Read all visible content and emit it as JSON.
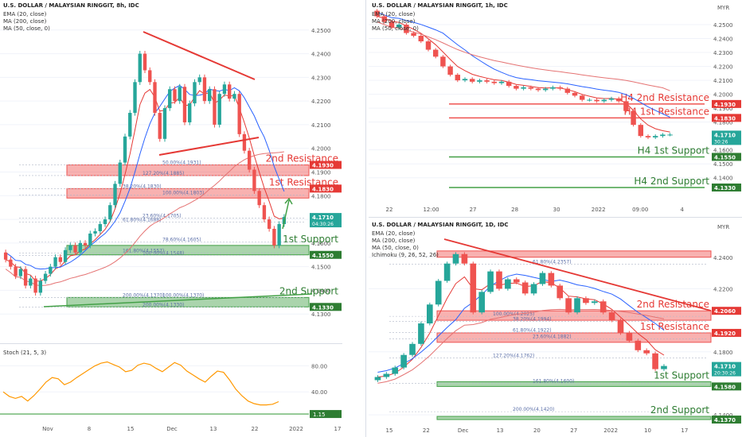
{
  "colors": {
    "up": "#26a69a",
    "down": "#ef5350",
    "ema": "#e53935",
    "ma200": "#e57373",
    "ma50": "#2962ff",
    "resistance": "#ef5350",
    "support": "#43a047",
    "resistance_text": "#e53935",
    "support_text": "#2e7d32",
    "trend": "#e53935",
    "stoch": "#ff9800",
    "axis_text": "#555555",
    "grid": "#f0f3fa"
  },
  "panels": [
    {
      "id": "eight-hour",
      "timeframe": "8h",
      "chart_data": {
        "type": "candlestick",
        "title": "U.S. DOLLAR / MALAYSIAN RINGGIT, 8h, IDC",
        "indicators": [
          "EMA (20, close)",
          "MA (200, close)",
          "MA (50, close, 0)"
        ],
        "currency": "",
        "ylim": [
          4.12,
          4.26
        ],
        "y_ticks": [
          "4.2500",
          "4.2400",
          "4.2300",
          "4.2200",
          "4.2100",
          "4.2000",
          "4.1900",
          "4.1800",
          "4.1700",
          "4.1600",
          "4.1500",
          "4.1400",
          "4.1300"
        ],
        "x_ticks": [
          "Nov",
          "8",
          "15",
          "Dec",
          "13",
          "22",
          "2022",
          "17"
        ],
        "price_tags": [
          {
            "text": "4.1930",
            "price": 4.193,
            "kind": "resistance"
          },
          {
            "text": "4.1830",
            "price": 4.183,
            "kind": "resistance"
          },
          {
            "text": "4.1710",
            "sub": "04:30:26",
            "price": 4.171,
            "kind": "last"
          },
          {
            "text": "4.1550",
            "price": 4.155,
            "kind": "support"
          },
          {
            "text": "4.1330",
            "price": 4.133,
            "kind": "support"
          }
        ],
        "zones": [
          {
            "label": "2nd Resistance",
            "top": 4.193,
            "bottom": 4.1885,
            "kind": "resistance"
          },
          {
            "label": "1st Resistance",
            "top": 4.183,
            "bottom": 4.179,
            "kind": "resistance"
          },
          {
            "label": "1st Support",
            "top": 4.159,
            "bottom": 4.155,
            "kind": "support"
          },
          {
            "label": "2nd Support",
            "top": 4.137,
            "bottom": 4.133,
            "kind": "support"
          }
        ],
        "fib_levels": [
          {
            "label": "50.00%(4.1931)",
            "price": 4.1931
          },
          {
            "label": "127.20%(4.1885)",
            "price": 4.1885
          },
          {
            "label": "38.20%(4.1830)",
            "price": 4.183
          },
          {
            "label": "100.00%(4.1803)",
            "price": 4.1803
          },
          {
            "label": "23.60%(4.1705)",
            "price": 4.1705
          },
          {
            "label": "61.80%(4.1688)",
            "price": 4.1688
          },
          {
            "label": "78.60%(4.1605)",
            "price": 4.1605
          },
          {
            "label": "100.00%(4.1548)",
            "price": 4.1548
          },
          {
            "label": "161.80%(4.1557)",
            "price": 4.1557
          },
          {
            "label": "100.00%(4.1370)",
            "price": 4.137
          },
          {
            "label": "200.00%(4.1330)",
            "price": 4.133
          },
          {
            "label": "200.00%(4.1370)",
            "price": 4.137
          }
        ],
        "candles": [
          [
            4.156,
            4.153
          ],
          [
            4.153,
            4.15
          ],
          [
            4.15,
            4.146
          ],
          [
            4.146,
            4.149
          ],
          [
            4.149,
            4.142
          ],
          [
            4.142,
            4.145
          ],
          [
            4.145,
            4.139
          ],
          [
            4.139,
            4.144
          ],
          [
            4.144,
            4.147
          ],
          [
            4.147,
            4.15
          ],
          [
            4.15,
            4.154
          ],
          [
            4.154,
            4.152
          ],
          [
            4.152,
            4.157
          ],
          [
            4.157,
            4.159
          ],
          [
            4.159,
            4.156
          ],
          [
            4.156,
            4.16
          ],
          [
            4.16,
            4.159
          ],
          [
            4.159,
            4.164
          ],
          [
            4.164,
            4.165
          ],
          [
            4.165,
            4.168
          ],
          [
            4.168,
            4.17
          ],
          [
            4.17,
            4.176
          ],
          [
            4.176,
            4.185
          ],
          [
            4.185,
            4.194
          ],
          [
            4.194,
            4.205
          ],
          [
            4.205,
            4.215
          ],
          [
            4.215,
            4.228
          ],
          [
            4.228,
            4.24
          ],
          [
            4.24,
            4.233
          ],
          [
            4.233,
            4.228
          ],
          [
            4.228,
            4.215
          ],
          [
            4.215,
            4.204
          ],
          [
            4.204,
            4.217
          ],
          [
            4.217,
            4.225
          ],
          [
            4.225,
            4.22
          ],
          [
            4.22,
            4.226
          ],
          [
            4.226,
            4.211
          ],
          [
            4.211,
            4.219
          ],
          [
            4.219,
            4.228
          ],
          [
            4.228,
            4.23
          ],
          [
            4.23,
            4.22
          ],
          [
            4.22,
            4.225
          ],
          [
            4.225,
            4.21
          ],
          [
            4.21,
            4.223
          ],
          [
            4.223,
            4.227
          ],
          [
            4.227,
            4.221
          ],
          [
            4.221,
            4.223
          ],
          [
            4.223,
            4.206
          ],
          [
            4.206,
            4.199
          ],
          [
            4.199,
            4.191
          ],
          [
            4.191,
            4.182
          ],
          [
            4.182,
            4.176
          ],
          [
            4.176,
            4.17
          ],
          [
            4.17,
            4.166
          ],
          [
            4.166,
            4.159
          ],
          [
            4.159,
            4.168
          ],
          [
            4.168,
            4.171
          ]
        ],
        "callouts": []
      },
      "stoch": {
        "label": "Stoch (21, 5, 3)",
        "y_ticks": [
          "80.00",
          "40.00"
        ],
        "level_tag": "1.15",
        "values": [
          40,
          33,
          30,
          33,
          26,
          34,
          44,
          55,
          62,
          60,
          51,
          55,
          62,
          68,
          74,
          80,
          84,
          86,
          82,
          78,
          71,
          73,
          81,
          84,
          82,
          76,
          71,
          78,
          85,
          81,
          72,
          66,
          60,
          55,
          64,
          72,
          70,
          58,
          44,
          34,
          26,
          22,
          20,
          20,
          21,
          25
        ]
      }
    },
    {
      "id": "one-hour",
      "timeframe": "1h",
      "chart_data": {
        "type": "candlestick",
        "title": "U.S. DOLLAR / MALAYSIAN RINGGIT, 1h, IDC",
        "indicators": [
          "EMA (20, close)",
          "MA (200, close)",
          "MA (50, close, 0)"
        ],
        "currency": "MYR",
        "ylim": [
          4.125,
          4.262
        ],
        "y_ticks": [
          "4.2500",
          "4.2400",
          "4.2300",
          "4.2200",
          "4.2100",
          "4.2000",
          "4.1900",
          "4.1800",
          "4.1600",
          "4.1500",
          "4.1400"
        ],
        "x_ticks": [
          "22",
          "12:00",
          "27",
          "28",
          "30",
          "2022",
          "09:00",
          "4"
        ],
        "price_tags": [
          {
            "text": "4.1930",
            "price": 4.193,
            "kind": "resistance"
          },
          {
            "text": "4.1830",
            "price": 4.183,
            "kind": "resistance"
          },
          {
            "text": "4.1710",
            "sub": "30:26",
            "price": 4.171,
            "kind": "last"
          },
          {
            "text": "4.1550",
            "price": 4.155,
            "kind": "support"
          },
          {
            "text": "4.1330",
            "price": 4.133,
            "kind": "support"
          }
        ],
        "zones": [
          {
            "label": "H4 2nd Resistance",
            "top": 4.193,
            "bottom": 4.193,
            "kind": "resistance"
          },
          {
            "label": "H4 1st Resistance",
            "top": 4.183,
            "bottom": 4.183,
            "kind": "resistance"
          },
          {
            "label": "H4 1st Support",
            "top": 4.155,
            "bottom": 4.155,
            "kind": "support"
          },
          {
            "label": "H4 2nd Support",
            "top": 4.133,
            "bottom": 4.133,
            "kind": "support"
          }
        ],
        "fib_levels": [],
        "candles": [
          [
            4.26,
            4.256
          ],
          [
            4.256,
            4.252
          ],
          [
            4.252,
            4.248
          ],
          [
            4.248,
            4.25
          ],
          [
            4.25,
            4.244
          ],
          [
            4.244,
            4.242
          ],
          [
            4.242,
            4.238
          ],
          [
            4.238,
            4.232
          ],
          [
            4.232,
            4.227
          ],
          [
            4.227,
            4.22
          ],
          [
            4.22,
            4.214
          ],
          [
            4.214,
            4.21
          ],
          [
            4.21,
            4.211
          ],
          [
            4.211,
            4.209
          ],
          [
            4.209,
            4.21
          ],
          [
            4.21,
            4.209
          ],
          [
            4.209,
            4.208
          ],
          [
            4.208,
            4.209
          ],
          [
            4.209,
            4.206
          ],
          [
            4.206,
            4.204
          ],
          [
            4.204,
            4.205
          ],
          [
            4.205,
            4.204
          ],
          [
            4.204,
            4.203
          ],
          [
            4.203,
            4.204
          ],
          [
            4.204,
            4.205
          ],
          [
            4.205,
            4.204
          ],
          [
            4.204,
            4.201
          ],
          [
            4.201,
            4.199
          ],
          [
            4.199,
            4.196
          ],
          [
            4.196,
            4.196
          ],
          [
            4.196,
            4.195
          ],
          [
            4.195,
            4.196
          ],
          [
            4.196,
            4.197
          ],
          [
            4.197,
            4.195
          ],
          [
            4.195,
            4.188
          ],
          [
            4.188,
            4.178
          ],
          [
            4.178,
            4.17
          ],
          [
            4.17,
            4.169
          ],
          [
            4.169,
            4.17
          ],
          [
            4.17,
            4.171
          ],
          [
            4.171,
            4.171
          ]
        ],
        "callouts": []
      }
    },
    {
      "id": "daily",
      "timeframe": "1D",
      "chart_data": {
        "type": "candlestick",
        "title": "U.S. DOLLAR / MALAYSIAN RINGGIT, 1D, IDC",
        "indicators": [
          "EMA (20, close)",
          "MA (200, close)",
          "MA (50, close, 0)",
          "Ichimoku (9, 26, 52, 26)"
        ],
        "currency": "MYR",
        "ylim": [
          4.135,
          4.255
        ],
        "y_ticks": [
          "4.2400",
          "4.2200",
          "4.1800",
          "4.1400"
        ],
        "x_ticks": [
          "15",
          "22",
          "Dec",
          "13",
          "20",
          "27",
          "2022",
          "10",
          "17"
        ],
        "price_tags": [
          {
            "text": "4.2060",
            "price": 4.206,
            "kind": "resistance"
          },
          {
            "text": "4.1920",
            "price": 4.192,
            "kind": "resistance"
          },
          {
            "text": "4.1710",
            "sub": "20:30:26",
            "price": 4.171,
            "kind": "last"
          },
          {
            "text": "4.1580",
            "price": 4.158,
            "kind": "support"
          },
          {
            "text": "4.1370",
            "price": 4.137,
            "kind": "support"
          }
        ],
        "zones": [
          {
            "label": "",
            "top": 4.244,
            "bottom": 4.24,
            "kind": "resistance"
          },
          {
            "label": "2nd Resistance",
            "top": 4.206,
            "bottom": 4.2,
            "kind": "resistance"
          },
          {
            "label": "1st Resistance",
            "top": 4.192,
            "bottom": 4.186,
            "kind": "resistance"
          },
          {
            "label": "1st Support",
            "top": 4.161,
            "bottom": 4.158,
            "kind": "support"
          },
          {
            "label": "2nd Support",
            "top": 4.139,
            "bottom": 4.137,
            "kind": "support"
          }
        ],
        "fib_levels": [
          {
            "label": "61.80%(4.2357)",
            "price": 4.2357
          },
          {
            "label": "38.20%(4.1994)",
            "price": 4.1994
          },
          {
            "label": "100.00%(4.2025)",
            "price": 4.2025
          },
          {
            "label": "23.60%(4.1882)",
            "price": 4.1882
          },
          {
            "label": "61.80%(4.1922)",
            "price": 4.1922
          },
          {
            "label": "127.20%(4.1762)",
            "price": 4.1762
          },
          {
            "label": "161.80%(4.1600)",
            "price": 4.16
          },
          {
            "label": "200.00%(4.1420)",
            "price": 4.142
          }
        ],
        "candles": [
          [
            4.162,
            4.164
          ],
          [
            4.164,
            4.166
          ],
          [
            4.166,
            4.17
          ],
          [
            4.17,
            4.178
          ],
          [
            4.178,
            4.185
          ],
          [
            4.185,
            4.198
          ],
          [
            4.198,
            4.21
          ],
          [
            4.21,
            4.225
          ],
          [
            4.225,
            4.236
          ],
          [
            4.236,
            4.242
          ],
          [
            4.242,
            4.236
          ],
          [
            4.236,
            4.205
          ],
          [
            4.205,
            4.218
          ],
          [
            4.218,
            4.231
          ],
          [
            4.231,
            4.22
          ],
          [
            4.22,
            4.226
          ],
          [
            4.226,
            4.224
          ],
          [
            4.224,
            4.217
          ],
          [
            4.217,
            4.223
          ],
          [
            4.223,
            4.23
          ],
          [
            4.23,
            4.222
          ],
          [
            4.222,
            4.214
          ],
          [
            4.214,
            4.205
          ],
          [
            4.205,
            4.214
          ],
          [
            4.214,
            4.211
          ],
          [
            4.211,
            4.212
          ],
          [
            4.212,
            4.205
          ],
          [
            4.205,
            4.2
          ],
          [
            4.2,
            4.192
          ],
          [
            4.192,
            4.187
          ],
          [
            4.187,
            4.181
          ],
          [
            4.181,
            4.179
          ],
          [
            4.179,
            4.169
          ],
          [
            4.169,
            4.171
          ]
        ],
        "callouts": []
      }
    }
  ]
}
